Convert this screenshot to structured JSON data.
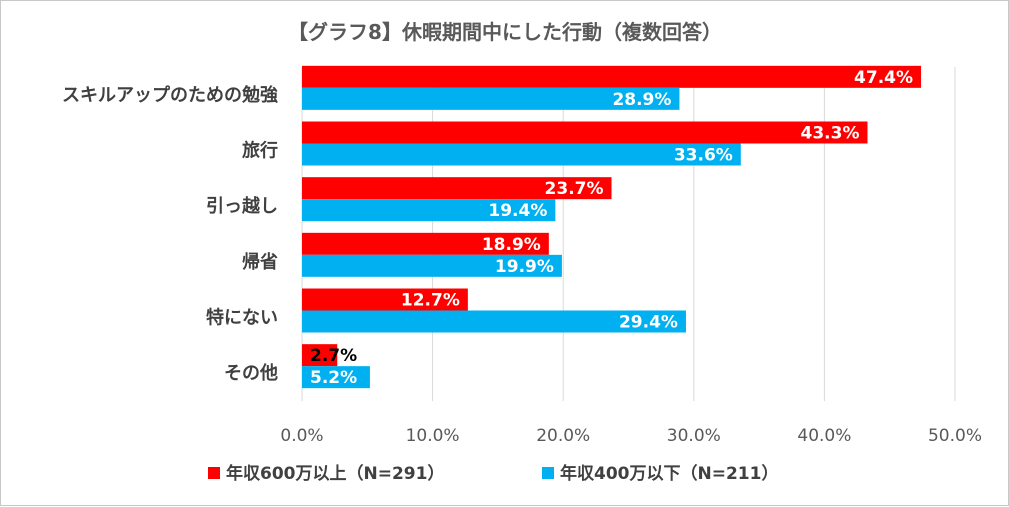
{
  "chart_data": {
    "type": "bar",
    "orientation": "horizontal",
    "title": "【グラフ8】休暇期間中にした行動（複数回答）",
    "categories": [
      "スキルアップのための勉強",
      "旅行",
      "引っ越し",
      "帰省",
      "特にない",
      "その他"
    ],
    "series": [
      {
        "name": "年収600万以上（N=291）",
        "color": "#ff0000",
        "values": [
          47.4,
          43.3,
          23.7,
          18.9,
          12.7,
          2.7
        ],
        "labels": [
          "47.4%",
          "43.3%",
          "23.7%",
          "18.9%",
          "12.7%",
          "2.7%"
        ]
      },
      {
        "name": "年収400万以下（N=211）",
        "color": "#00b0f0",
        "values": [
          28.9,
          33.6,
          19.4,
          19.9,
          29.4,
          5.2
        ],
        "labels": [
          "28.9%",
          "33.6%",
          "19.4%",
          "19.9%",
          "29.4%",
          "5.2%"
        ]
      }
    ],
    "xlim": [
      0,
      50
    ],
    "xticks": [
      "0.0%",
      "10.0%",
      "20.0%",
      "30.0%",
      "40.0%",
      "50.0%"
    ],
    "grid": true,
    "legend": "bottom"
  }
}
